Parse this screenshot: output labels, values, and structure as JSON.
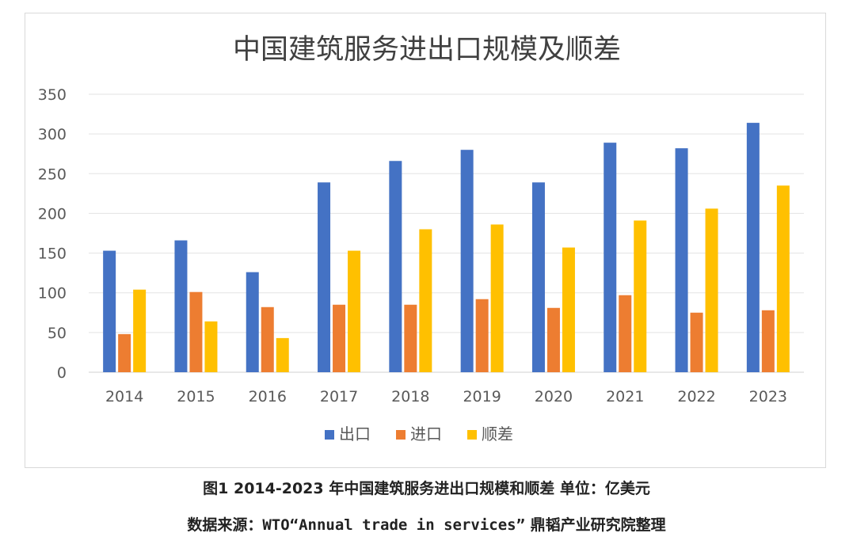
{
  "chart_data": {
    "type": "bar",
    "title": "中国建筑服务进出口规模及顺差",
    "categories": [
      "2014",
      "2015",
      "2016",
      "2017",
      "2018",
      "2019",
      "2020",
      "2021",
      "2022",
      "2023"
    ],
    "series": [
      {
        "name": "出口",
        "color": "#4472C4",
        "values": [
          153,
          166,
          126,
          239,
          266,
          280,
          239,
          289,
          282,
          314
        ]
      },
      {
        "name": "进口",
        "color": "#ED7D31",
        "values": [
          48,
          101,
          82,
          85,
          85,
          92,
          81,
          97,
          75,
          78
        ]
      },
      {
        "name": "顺差",
        "color": "#FFC000",
        "values": [
          104,
          64,
          43,
          153,
          180,
          186,
          157,
          191,
          206,
          235
        ]
      }
    ],
    "ylim": [
      0,
      350
    ],
    "yticks": [
      "0",
      "50",
      "100",
      "150",
      "200",
      "250",
      "300",
      "350"
    ],
    "grid": true,
    "legend_position": "bottom"
  },
  "caption": {
    "line1": "图1 2014-2023 年中国建筑服务进出口规模和顺差 单位：亿美元",
    "line2_prefix": "数据来源：",
    "line2_source": "WTO“Annual trade in services”",
    "line2_suffix": " 鼎韬产业研究院整理"
  }
}
